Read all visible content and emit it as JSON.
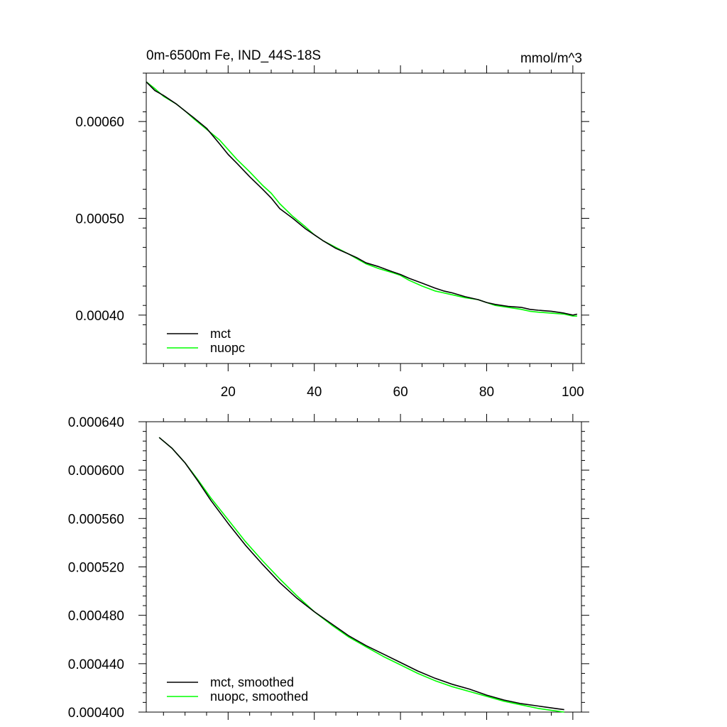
{
  "chart_data": [
    {
      "type": "line",
      "title": "0m-6500m Fe, IND_44S-18S",
      "units": "mmol/m^3",
      "xlabel": "",
      "ylabel": "",
      "xlim": [
        1,
        102
      ],
      "ylim": [
        0.00035,
        0.00065
      ],
      "xticks": [
        20,
        40,
        60,
        80,
        100
      ],
      "xtick_labels": [
        "20",
        "40",
        "60",
        "80",
        "100"
      ],
      "yticks": [
        0.0004,
        0.0005,
        0.0006
      ],
      "ytick_labels": [
        "0.00040",
        "0.00050",
        "0.00060"
      ],
      "grid": false,
      "legend_position": "bottom-left",
      "series": [
        {
          "name": "mct",
          "color": "#000000",
          "x": [
            1,
            3,
            5,
            8,
            10,
            12,
            15,
            18,
            20,
            22,
            25,
            28,
            30,
            32,
            35,
            38,
            40,
            42,
            45,
            48,
            50,
            52,
            55,
            58,
            60,
            62,
            65,
            68,
            70,
            72,
            75,
            78,
            80,
            82,
            85,
            88,
            90,
            92,
            95,
            98,
            100,
            101
          ],
          "y": [
            0.000641,
            0.000632,
            0.000627,
            0.000618,
            0.000611,
            0.000604,
            0.000593,
            0.000577,
            0.000566,
            0.000557,
            0.000543,
            0.00053,
            0.000521,
            0.00051,
            0.0005,
            0.000489,
            0.000483,
            0.000477,
            0.000469,
            0.000463,
            0.000459,
            0.000454,
            0.00045,
            0.000445,
            0.000442,
            0.000438,
            0.000433,
            0.000428,
            0.000425,
            0.000423,
            0.000419,
            0.000416,
            0.000413,
            0.000411,
            0.000409,
            0.000408,
            0.000406,
            0.000405,
            0.000404,
            0.000402,
            0.0004,
            0.000401
          ]
        },
        {
          "name": "nuopc",
          "color": "#00ff00",
          "x": [
            1,
            3,
            5,
            8,
            10,
            12,
            15,
            18,
            20,
            22,
            25,
            28,
            30,
            32,
            35,
            38,
            40,
            42,
            45,
            48,
            50,
            52,
            55,
            58,
            60,
            62,
            65,
            68,
            70,
            72,
            75,
            78,
            80,
            82,
            85,
            88,
            90,
            92,
            95,
            98,
            100,
            101
          ],
          "y": [
            0.000641,
            0.000634,
            0.000626,
            0.000618,
            0.000611,
            0.000603,
            0.000592,
            0.000581,
            0.000571,
            0.000561,
            0.000548,
            0.000534,
            0.000526,
            0.000515,
            0.000502,
            0.000491,
            0.000483,
            0.000477,
            0.00047,
            0.000463,
            0.000458,
            0.000453,
            0.000448,
            0.000444,
            0.000441,
            0.000436,
            0.00043,
            0.000425,
            0.000423,
            0.000421,
            0.000418,
            0.000416,
            0.000413,
            0.00041,
            0.000408,
            0.000406,
            0.000404,
            0.000403,
            0.000402,
            0.000401,
            0.000399,
            0.000399
          ]
        }
      ]
    },
    {
      "type": "line",
      "title": "",
      "xlabel": "",
      "ylabel": "",
      "xlim": [
        1,
        102
      ],
      "ylim": [
        0.0004,
        0.00064
      ],
      "xticks": [
        20,
        40,
        60,
        80,
        100
      ],
      "yticks": [
        0.0004,
        0.00044,
        0.00048,
        0.00052,
        0.00056,
        0.0006,
        0.00064
      ],
      "ytick_labels": [
        "0.000400",
        "0.000440",
        "0.000480",
        "0.000520",
        "0.000560",
        "0.000600",
        "0.000640"
      ],
      "grid": false,
      "legend_position": "bottom-left",
      "series": [
        {
          "name": "mct, smoothed",
          "color": "#000000",
          "x": [
            4,
            7,
            10,
            13,
            16,
            20,
            24,
            28,
            32,
            36,
            40,
            44,
            48,
            52,
            56,
            60,
            64,
            68,
            72,
            76,
            80,
            84,
            88,
            92,
            96,
            98
          ],
          "y": [
            0.000627,
            0.000618,
            0.000606,
            0.000591,
            0.000575,
            0.000556,
            0.000538,
            0.000522,
            0.000507,
            0.000494,
            0.000483,
            0.000473,
            0.000463,
            0.000455,
            0.000448,
            0.000441,
            0.000434,
            0.000428,
            0.000423,
            0.000419,
            0.000414,
            0.00041,
            0.000407,
            0.000405,
            0.000403,
            0.000402
          ]
        },
        {
          "name": "nuopc, smoothed",
          "color": "#00ff00",
          "x": [
            4,
            7,
            10,
            13,
            16,
            20,
            24,
            28,
            32,
            36,
            40,
            44,
            48,
            52,
            56,
            60,
            64,
            68,
            72,
            76,
            80,
            84,
            88,
            92,
            96,
            98
          ],
          "y": [
            0.000627,
            0.000618,
            0.000606,
            0.000592,
            0.000577,
            0.000559,
            0.000541,
            0.000525,
            0.00051,
            0.000496,
            0.000483,
            0.000472,
            0.000462,
            0.000454,
            0.000446,
            0.000439,
            0.000432,
            0.000426,
            0.000421,
            0.000417,
            0.000413,
            0.000409,
            0.000406,
            0.000403,
            0.000401,
            0.0004
          ]
        }
      ]
    }
  ]
}
